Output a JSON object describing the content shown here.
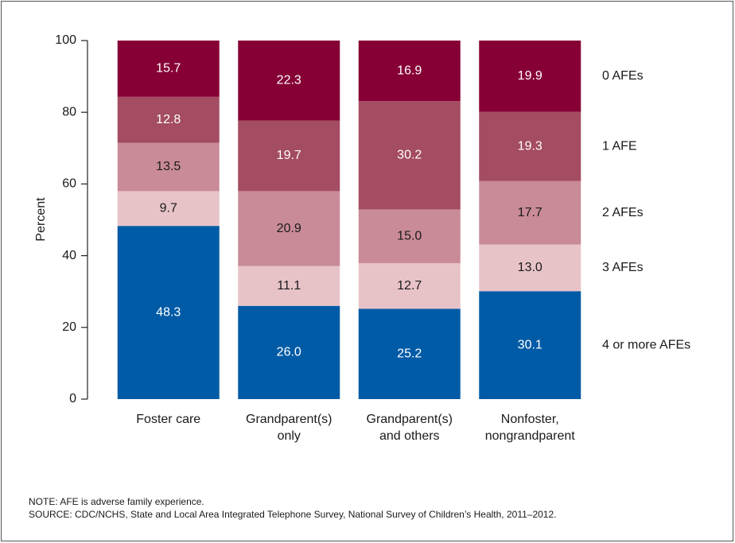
{
  "chart_data": {
    "type": "stacked_bar",
    "categories": [
      [
        "Foster care"
      ],
      [
        "Grandparent(s)",
        "only"
      ],
      [
        "Grandparent(s)",
        "and others"
      ],
      [
        "Nonfoster,",
        "nongrandparent"
      ]
    ],
    "series": [
      {
        "name": "4 or more AFEs",
        "color": "#005ba6",
        "values": [
          48.3,
          26.0,
          25.2,
          30.1
        ],
        "value_labels": [
          "48.3",
          "26.0",
          "25.2",
          "30.1"
        ]
      },
      {
        "name": "3 AFEs",
        "color": "#e7c3c8",
        "values": [
          9.7,
          11.1,
          12.7,
          13.0
        ],
        "value_labels": [
          "9.7",
          "11.1",
          "12.7",
          "13.0"
        ]
      },
      {
        "name": "2 AFEs",
        "color": "#c98b97",
        "values": [
          13.5,
          20.9,
          15.0,
          17.7
        ],
        "value_labels": [
          "13.5",
          "20.9",
          "15.0",
          "17.7"
        ]
      },
      {
        "name": "1 AFE",
        "color": "#a44c61",
        "values": [
          12.8,
          19.7,
          30.2,
          19.3
        ],
        "value_labels": [
          "12.8",
          "19.7",
          "30.2",
          "19.3"
        ]
      },
      {
        "name": "0 AFEs",
        "color": "#860035",
        "values": [
          15.7,
          22.3,
          16.9,
          19.9
        ],
        "value_labels": [
          "15.7",
          "22.3",
          "16.9",
          "19.9"
        ]
      }
    ],
    "y_label": "Percent",
    "ylim": [
      0,
      100
    ],
    "yticks": [
      0,
      20,
      40,
      60,
      80,
      100
    ],
    "notes": [
      "NOTE: AFE is adverse family experience.",
      "SOURCE: CDC/NCHS, State and Local Area Integrated Telephone Survey, National Survey of Children’s Health, 2011–2012."
    ]
  }
}
